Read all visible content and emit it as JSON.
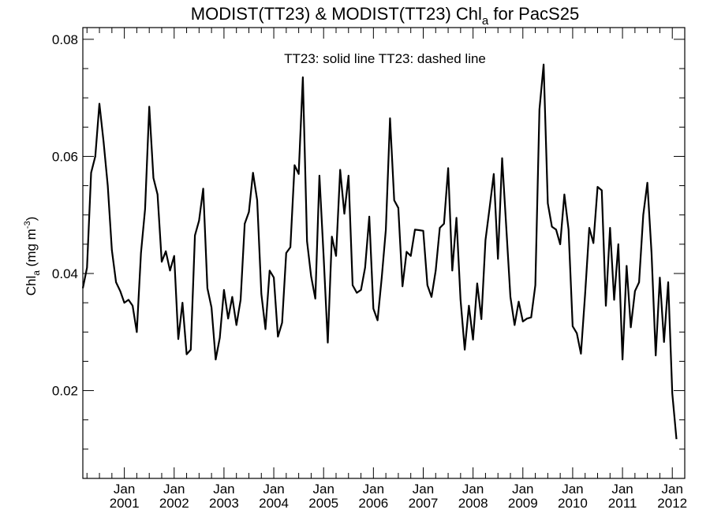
{
  "chart_data": {
    "type": "line",
    "title": {
      "prefix": "MODIST(TT23) & MODIST(TT23)  Chl",
      "subscript": "a",
      "suffix": " for PacS25"
    },
    "annotation": "TT23: solid line   TT23: dashed line",
    "ylabel": {
      "prefix": "Chl",
      "subscript": "a",
      "middle": " (mg m",
      "superscript": "-3",
      "suffix": ")"
    },
    "xlim": [
      "2000-03",
      "2012-04"
    ],
    "ylim": [
      0.005,
      0.082
    ],
    "y_ticks": [
      {
        "value": 0.02,
        "label": "0.02"
      },
      {
        "value": 0.04,
        "label": "0.04"
      },
      {
        "value": 0.06,
        "label": "0.06"
      },
      {
        "value": 0.08,
        "label": "0.08"
      }
    ],
    "x_ticks": [
      {
        "date": "2001-01",
        "month": "Jan",
        "year": "2001"
      },
      {
        "date": "2002-01",
        "month": "Jan",
        "year": "2002"
      },
      {
        "date": "2003-01",
        "month": "Jan",
        "year": "2003"
      },
      {
        "date": "2004-01",
        "month": "Jan",
        "year": "2004"
      },
      {
        "date": "2005-01",
        "month": "Jan",
        "year": "2005"
      },
      {
        "date": "2006-01",
        "month": "Jan",
        "year": "2006"
      },
      {
        "date": "2007-01",
        "month": "Jan",
        "year": "2007"
      },
      {
        "date": "2008-01",
        "month": "Jan",
        "year": "2008"
      },
      {
        "date": "2009-01",
        "month": "Jan",
        "year": "2009"
      },
      {
        "date": "2010-01",
        "month": "Jan",
        "year": "2010"
      },
      {
        "date": "2011-01",
        "month": "Jan",
        "year": "2011"
      },
      {
        "date": "2012-01",
        "month": "Jan",
        "year": "2012"
      }
    ],
    "grid": false,
    "series": [
      {
        "style": "solid",
        "color": "#000000",
        "start": "2000-03",
        "values": [
          0.0375,
          0.041,
          0.0572,
          0.06,
          0.069,
          0.0625,
          0.055,
          0.044,
          0.0385,
          0.037,
          0.035,
          0.0355,
          0.0345,
          0.03,
          0.0435,
          0.051,
          0.0685,
          0.0563,
          0.0535,
          0.042,
          0.0438,
          0.0405,
          0.043,
          0.0288,
          0.035,
          0.0262,
          0.027,
          0.0465,
          0.049,
          0.0545,
          0.0375,
          0.0342,
          0.0253,
          0.029,
          0.0372,
          0.0323,
          0.036,
          0.0312,
          0.0355,
          0.0485,
          0.0505,
          0.0572,
          0.0525,
          0.0365,
          0.0305,
          0.0405,
          0.0393,
          0.0292,
          0.0316,
          0.0435,
          0.0445,
          0.0585,
          0.057,
          0.0735,
          0.0455,
          0.0395,
          0.0357,
          0.0567,
          0.043,
          0.0282,
          0.0463,
          0.043,
          0.0577,
          0.0502,
          0.0567,
          0.038,
          0.0367,
          0.0372,
          0.041,
          0.0497,
          0.034,
          0.032,
          0.0393,
          0.0475,
          0.0665,
          0.0525,
          0.0512,
          0.0378,
          0.0437,
          0.043,
          0.0475,
          0.0474,
          0.0473,
          0.038,
          0.036,
          0.0405,
          0.0478,
          0.0485,
          0.058,
          0.0405,
          0.0495,
          0.0355,
          0.027,
          0.0345,
          0.0287,
          0.0383,
          0.0322,
          0.0457,
          0.0513,
          0.057,
          0.0425,
          0.0597,
          0.048,
          0.036,
          0.0312,
          0.0352,
          0.0318,
          0.0323,
          0.0325,
          0.038,
          0.068,
          0.0757,
          0.052,
          0.048,
          0.0475,
          0.045,
          0.0535,
          0.0475,
          0.031,
          0.0298,
          0.0263,
          0.0365,
          0.0478,
          0.0452,
          0.0548,
          0.0542,
          0.0345,
          0.0478,
          0.0355,
          0.045,
          0.0253,
          0.0413,
          0.0308,
          0.037,
          0.0385,
          0.05,
          0.0555,
          0.0435,
          0.026,
          0.0393,
          0.0283,
          0.0385,
          0.0195,
          0.0117
        ]
      }
    ]
  }
}
